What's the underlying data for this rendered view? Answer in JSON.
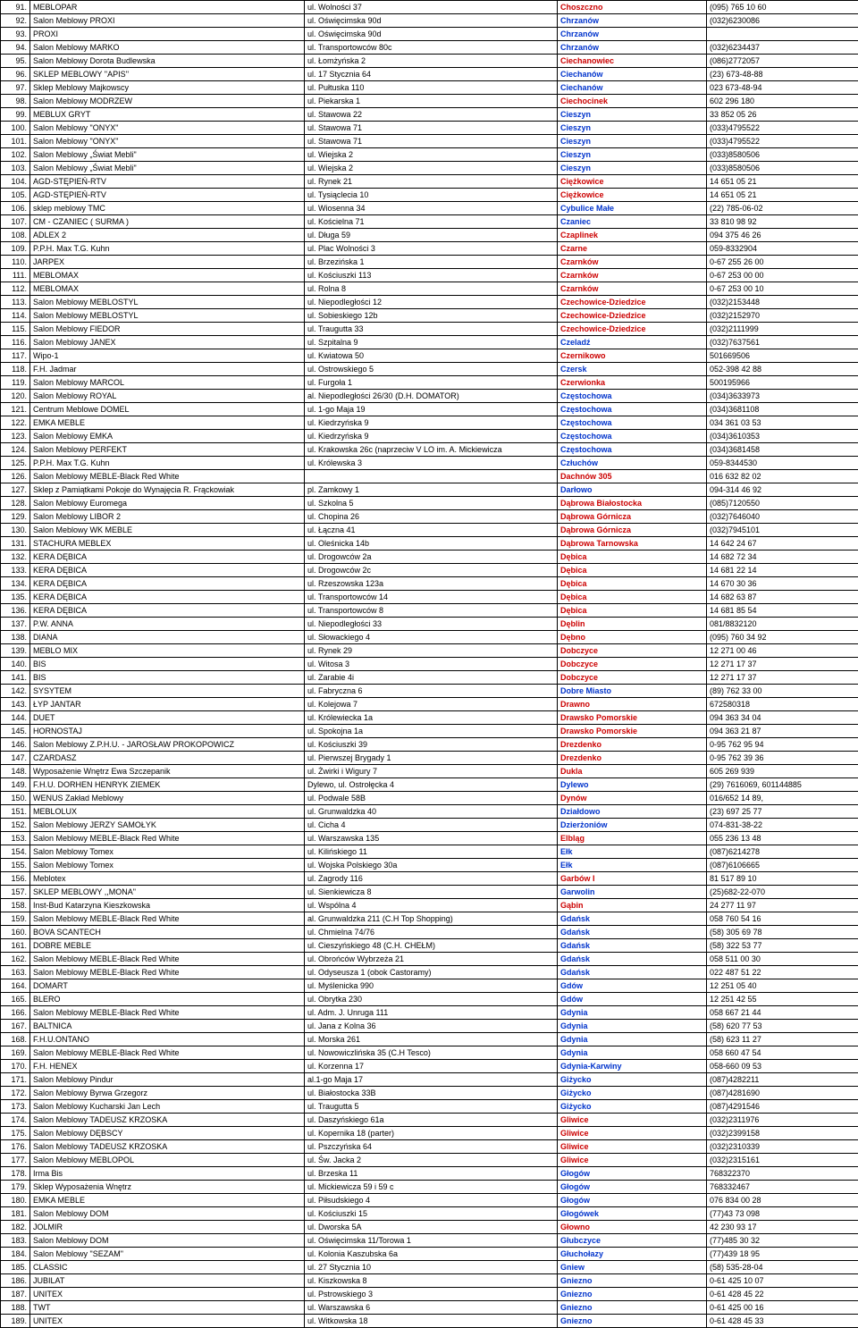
{
  "colors": {
    "cityDefault": "#cc0000",
    "cityBlue": "#0033cc",
    "text": "#000000",
    "border": "#000000",
    "background": "#ffffff"
  },
  "fontSize": 9,
  "rows": [
    {
      "n": "91.",
      "name": "MEBLOPAR",
      "addr": "ul. Wolności 37",
      "city": "Choszczno",
      "phone": "(095) 765 10 60",
      "cityColor": "#cc0000"
    },
    {
      "n": "92.",
      "name": "Salon Meblowy PROXI",
      "addr": "ul. Oświęcimska 90d",
      "city": "Chrzanów",
      "phone": "(032)6230086",
      "cityColor": "#0033cc"
    },
    {
      "n": "93.",
      "name": "PROXI",
      "addr": "ul. Oświęcimska 90d",
      "city": "Chrzanów",
      "phone": "",
      "cityColor": "#0033cc"
    },
    {
      "n": "94.",
      "name": "Salon Meblowy MARKO",
      "addr": "ul. Transportowców 80c",
      "city": "Chrzanów",
      "phone": "(032)6234437",
      "cityColor": "#0033cc"
    },
    {
      "n": "95.",
      "name": "Salon Meblowy Dorota Budlewska",
      "addr": "ul. Łomżyńska 2",
      "city": "Ciechanowiec",
      "phone": "(086)2772057",
      "cityColor": "#cc0000"
    },
    {
      "n": "96.",
      "name": "SKLEP MEBLOWY ''APIS''",
      "addr": "ul. 17 Stycznia 64",
      "city": "Ciechanów",
      "phone": "(23) 673-48-88",
      "cityColor": "#0033cc"
    },
    {
      "n": "97.",
      "name": "Sklep Meblowy  Majkowscy",
      "addr": "ul. Pułtuska 110",
      "city": "Ciechanów",
      "phone": "023 673-48-94",
      "cityColor": "#0033cc"
    },
    {
      "n": "98.",
      "name": "Salon Meblowy MODRZEW",
      "addr": "ul. Piekarska 1",
      "city": "Ciechocinek",
      "phone": "602 296 180",
      "cityColor": "#cc0000"
    },
    {
      "n": "99.",
      "name": "MEBLUX  GRYT",
      "addr": "ul. Stawowa 22",
      "city": "Cieszyn",
      "phone": "33 852 05 26",
      "cityColor": "#0033cc"
    },
    {
      "n": "100.",
      "name": "Salon Meblowy \"ONYX\"",
      "addr": "ul. Stawowa 71",
      "city": "Cieszyn",
      "phone": "(033)4795522",
      "cityColor": "#0033cc"
    },
    {
      "n": "101.",
      "name": "Salon Meblowy \"ONYX\"",
      "addr": "ul. Stawowa 71",
      "city": "Cieszyn",
      "phone": "(033)4795522",
      "cityColor": "#0033cc"
    },
    {
      "n": "102.",
      "name": "Salon Meblowy „Świat Mebli\"",
      "addr": "ul. Wiejska 2",
      "city": "Cieszyn",
      "phone": "(033)8580506",
      "cityColor": "#0033cc"
    },
    {
      "n": "103.",
      "name": "Salon Meblowy „Świat Mebli\"",
      "addr": "ul. Wiejska 2",
      "city": "Cieszyn",
      "phone": "(033)8580506",
      "cityColor": "#0033cc"
    },
    {
      "n": "104.",
      "name": "AGD-STĘPIEŃ-RTV",
      "addr": "ul. Rynek 21",
      "city": "Ciężkowice",
      "phone": "14 651 05 21",
      "cityColor": "#cc0000"
    },
    {
      "n": "105.",
      "name": "AGD-STĘPIEŃ-RTV",
      "addr": "ul. Tysiąclecia 10",
      "city": "Ciężkowice",
      "phone": "14 651 05 21",
      "cityColor": "#cc0000"
    },
    {
      "n": "106.",
      "name": "sklep meblowy TMC",
      "addr": "ul. Wiosenna 34",
      "city": "Cybulice Małe",
      "phone": "(22) 785-06-02",
      "cityColor": "#0033cc"
    },
    {
      "n": "107.",
      "name": "CM - CZANIEC ( SURMA )",
      "addr": "ul. Kościelna 71",
      "city": "Czaniec",
      "phone": "33 810 98 92",
      "cityColor": "#0033cc"
    },
    {
      "n": "108.",
      "name": "ADLEX 2",
      "addr": "ul. Długa 59",
      "city": "Czaplinek",
      "phone": "094 375 46 26",
      "cityColor": "#cc0000"
    },
    {
      "n": "109.",
      "name": "P.P.H. Max T.G. Kuhn",
      "addr": "ul. Plac Wolności 3",
      "city": "Czarne",
      "phone": "059-8332904",
      "cityColor": "#cc0000"
    },
    {
      "n": "110.",
      "name": "JARPEX",
      "addr": "ul. Brzezińska 1",
      "city": "Czarnków",
      "phone": "0-67 255 26 00",
      "cityColor": "#cc0000"
    },
    {
      "n": "111.",
      "name": "MEBLOMAX",
      "addr": "ul. Kościuszki 113",
      "city": "Czarnków",
      "phone": "0-67 253 00 00",
      "cityColor": "#cc0000"
    },
    {
      "n": "112.",
      "name": "MEBLOMAX",
      "addr": "ul. Rolna 8",
      "city": "Czarnków",
      "phone": "0-67 253 00 10",
      "cityColor": "#cc0000"
    },
    {
      "n": "113.",
      "name": "Salon Meblowy MEBLOSTYL",
      "addr": "ul. Niepodległości 12",
      "city": "Czechowice-Dziedzice",
      "phone": "(032)2153448",
      "cityColor": "#cc0000"
    },
    {
      "n": "114.",
      "name": "Salon Meblowy MEBLOSTYL",
      "addr": "ul. Sobieskiego 12b",
      "city": "Czechowice-Dziedzice",
      "phone": "(032)2152970",
      "cityColor": "#cc0000"
    },
    {
      "n": "115.",
      "name": "Salon Meblowy FIEDOR",
      "addr": "ul. Traugutta 33",
      "city": "Czechowice-Dziedzice",
      "phone": "(032)2111999",
      "cityColor": "#cc0000"
    },
    {
      "n": "116.",
      "name": "Salon Meblowy JANEX",
      "addr": "ul. Szpitalna 9",
      "city": "Czeladź",
      "phone": "(032)7637561",
      "cityColor": "#0033cc"
    },
    {
      "n": "117.",
      "name": "Wipo-1",
      "addr": "ul. Kwiatowa 50",
      "city": "Czernikowo",
      "phone": "501669506",
      "cityColor": "#cc0000"
    },
    {
      "n": "118.",
      "name": "F.H. Jadmar",
      "addr": "ul. Ostrowskiego 5",
      "city": "Czersk",
      "phone": "052-398 42 88",
      "cityColor": "#0033cc"
    },
    {
      "n": "119.",
      "name": "Salon Meblowy MARCOL",
      "addr": "ul. Furgoła 1",
      "city": "Czerwionka",
      "phone": "500195966",
      "cityColor": "#cc0000"
    },
    {
      "n": "120.",
      "name": "Salon Meblowy ROYAL",
      "addr": "al. Niepodległości 26/30 (D.H. DOMATOR)",
      "city": "Częstochowa",
      "phone": "(034)3633973",
      "cityColor": "#0033cc"
    },
    {
      "n": "121.",
      "name": "Centrum Meblowe DOMEL",
      "addr": "ul. 1-go Maja 19",
      "city": "Częstochowa",
      "phone": "(034)3681108",
      "cityColor": "#0033cc"
    },
    {
      "n": "122.",
      "name": "EMKA MEBLE",
      "addr": "ul. Kiedrzyńska 9",
      "city": "Częstochowa",
      "phone": "034 361 03 53",
      "cityColor": "#0033cc"
    },
    {
      "n": "123.",
      "name": "Salon Meblowy EMKA",
      "addr": "ul. Kiedrzyńska 9",
      "city": "Częstochowa",
      "phone": "(034)3610353",
      "cityColor": "#0033cc"
    },
    {
      "n": "124.",
      "name": "Salon Meblowy PERFEKT",
      "addr": "ul. Krakowska 26c (naprzeciw V LO im. A. Mickiewicza",
      "city": "Częstochowa",
      "phone": "(034)3681458",
      "cityColor": "#0033cc"
    },
    {
      "n": "125.",
      "name": "P.P.H. Max T.G. Kuhn",
      "addr": "ul. Królewska 3",
      "city": "Człuchów",
      "phone": "059-8344530",
      "cityColor": "#0033cc"
    },
    {
      "n": "126.",
      "name": "Salon Meblowy MEBLE-Black Red White",
      "addr": "",
      "city": "Dachnów 305",
      "phone": "016 632 82 02",
      "cityColor": "#cc0000"
    },
    {
      "n": "127.",
      "name": "Sklep z Pamiątkami Pokoje do Wynajęcia R. Frąckowiak",
      "addr": "pl. Zamkowy 1",
      "city": "Darłowo",
      "phone": "094-314 46 92",
      "cityColor": "#0033cc"
    },
    {
      "n": "128.",
      "name": "Salon Meblowy Euromega",
      "addr": "ul. Szkolna 5",
      "city": "Dąbrowa Białostocka",
      "phone": "(085)7120550",
      "cityColor": "#cc0000"
    },
    {
      "n": "129.",
      "name": "Salon Meblowy LIBOR 2",
      "addr": "ul. Chopina 26",
      "city": "Dąbrowa Górnicza",
      "phone": "(032)7646040",
      "cityColor": "#cc0000"
    },
    {
      "n": "130.",
      "name": "Salon Meblowy WK MEBLE",
      "addr": "ul. Łączna 41",
      "city": "Dąbrowa Górnicza",
      "phone": "(032)7945101",
      "cityColor": "#cc0000"
    },
    {
      "n": "131.",
      "name": "STACHURA  MEBLEX",
      "addr": "ul. Oleśnicka 14b",
      "city": "Dąbrowa Tarnowska",
      "phone": "14 642 24 67",
      "cityColor": "#cc0000"
    },
    {
      "n": "132.",
      "name": "KERA  DĘBICA",
      "addr": "ul. Drogowców 2a",
      "city": "Dębica",
      "phone": "14 682 72 34",
      "cityColor": "#cc0000"
    },
    {
      "n": "133.",
      "name": "KERA  DĘBICA",
      "addr": "ul. Drogowców 2c",
      "city": "Dębica",
      "phone": "14 681 22 14",
      "cityColor": "#cc0000"
    },
    {
      "n": "134.",
      "name": "KERA  DĘBICA",
      "addr": "ul. Rzeszowska 123a",
      "city": "Dębica",
      "phone": "14 670 30 36",
      "cityColor": "#cc0000"
    },
    {
      "n": "135.",
      "name": "KERA  DĘBICA",
      "addr": "ul. Transportowców 14",
      "city": "Dębica",
      "phone": "14 682 63 87",
      "cityColor": "#cc0000"
    },
    {
      "n": "136.",
      "name": "KERA  DĘBICA",
      "addr": "ul. Transportowców 8",
      "city": "Dębica",
      "phone": "14 681 85 54",
      "cityColor": "#cc0000"
    },
    {
      "n": "137.",
      "name": "P.W. ANNA",
      "addr": "ul. Niepodległości 33",
      "city": "Dęblin",
      "phone": "081/8832120",
      "cityColor": "#cc0000"
    },
    {
      "n": "138.",
      "name": "DIANA",
      "addr": "ul. Słowackiego 4",
      "city": "Dębno",
      "phone": "(095) 760 34 92",
      "cityColor": "#cc0000"
    },
    {
      "n": "139.",
      "name": "MEBLO MIX",
      "addr": "ul. Rynek 29",
      "city": "Dobczyce",
      "phone": "12 271 00 46",
      "cityColor": "#cc0000"
    },
    {
      "n": "140.",
      "name": "BIS",
      "addr": "ul. Witosa 3",
      "city": "Dobczyce",
      "phone": "12 271 17 37",
      "cityColor": "#cc0000"
    },
    {
      "n": "141.",
      "name": "BIS",
      "addr": "ul. Zarabie 4i",
      "city": "Dobczyce",
      "phone": "12 271 17 37",
      "cityColor": "#cc0000"
    },
    {
      "n": "142.",
      "name": "SYSYTEM",
      "addr": "ul. Fabryczna 6",
      "city": "Dobre Miasto",
      "phone": "(89) 762 33 00",
      "cityColor": "#0033cc"
    },
    {
      "n": "143.",
      "name": "ŁYP JANTAR",
      "addr": "ul. Kolejowa 7",
      "city": "Drawno",
      "phone": "672580318",
      "cityColor": "#cc0000"
    },
    {
      "n": "144.",
      "name": "DUET",
      "addr": "ul. Królewiecka 1a",
      "city": "Drawsko Pomorskie",
      "phone": "094 363 34 04",
      "cityColor": "#cc0000"
    },
    {
      "n": "145.",
      "name": "HORNOSTAJ",
      "addr": "ul. Spokojna 1a",
      "city": "Drawsko Pomorskie",
      "phone": "094 363 21 87",
      "cityColor": "#cc0000"
    },
    {
      "n": "146.",
      "name": "Salon Meblowy Z.P.H.U. - JAROSŁAW  PROKOPOWICZ",
      "addr": "ul. Kościuszki 39",
      "city": "Drezdenko",
      "phone": "0-95 762 95 94",
      "cityColor": "#cc0000"
    },
    {
      "n": "147.",
      "name": "CZARDASZ",
      "addr": "ul. Pierwszej Brygady 1",
      "city": "Drezdenko",
      "phone": "0-95 762 39 36",
      "cityColor": "#cc0000"
    },
    {
      "n": "148.",
      "name": "Wyposażenie Wnętrz Ewa Szczepanik",
      "addr": "ul. Żwirki i Wigury 7",
      "city": "Dukla",
      "phone": "605 269 939",
      "cityColor": "#cc0000"
    },
    {
      "n": "149.",
      "name": "F.H.U. DORHEN HENRYK ZIEMEK",
      "addr": "Dylewo, ul. Ostrołęcka 4",
      "city": "Dylewo",
      "phone": "(29) 7616069, 601144885",
      "cityColor": "#0033cc"
    },
    {
      "n": "150.",
      "name": "WENUS Zakład Meblowy",
      "addr": "ul. Podwale 58B",
      "city": "Dynów",
      "phone": "016/652 14 89,",
      "cityColor": "#cc0000"
    },
    {
      "n": "151.",
      "name": "MEBLOLUX",
      "addr": "ul. Grunwaldzka 40",
      "city": "Działdowo",
      "phone": "(23) 697 25 77",
      "cityColor": "#0033cc"
    },
    {
      "n": "152.",
      "name": "Salon Meblowy JERZY SAMOŁYK",
      "addr": "ul. Cicha 4",
      "city": "Dzierżoniów",
      "phone": "074-831-38-22",
      "cityColor": "#0033cc"
    },
    {
      "n": "153.",
      "name": "Salon Meblowy MEBLE-Black Red White",
      "addr": "ul. Warszawska 135",
      "city": "Elbląg",
      "phone": "055 236 13 48",
      "cityColor": "#cc0000"
    },
    {
      "n": "154.",
      "name": "Salon Meblowy Tomex",
      "addr": "ul. Kilińskiego 11",
      "city": "Ełk",
      "phone": "(087)6214278",
      "cityColor": "#0033cc"
    },
    {
      "n": "155.",
      "name": "Salon Meblowy Tomex",
      "addr": "ul. Wojska Polskiego 30a",
      "city": "Ełk",
      "phone": "(087)6106665",
      "cityColor": "#0033cc"
    },
    {
      "n": "156.",
      "name": "Meblotex",
      "addr": "ul. Zagrody 116",
      "city": "Garbów I",
      "phone": "81 517 89 10",
      "cityColor": "#cc0000"
    },
    {
      "n": "157.",
      "name": "SKLEP MEBLOWY ,,MONA\"",
      "addr": "ul. Sienkiewicza 8",
      "city": "Garwolin",
      "phone": "(25)682-22-070",
      "cityColor": "#0033cc"
    },
    {
      "n": "158.",
      "name": "Inst-Bud Katarzyna Kieszkowska",
      "addr": "ul. Wspólna 4",
      "city": "Gąbin",
      "phone": "24 277 11 97",
      "cityColor": "#cc0000"
    },
    {
      "n": "159.",
      "name": "Salon Meblowy MEBLE-Black Red White",
      "addr": "al. Grunwaldzka 211 (C.H Top Shopping)",
      "city": "Gdańsk",
      "phone": "058 760 54 16",
      "cityColor": "#0033cc"
    },
    {
      "n": "160.",
      "name": "BOVA SCANTECH",
      "addr": "ul. Chmielna 74/76",
      "city": "Gdańsk",
      "phone": "(58) 305 69 78",
      "cityColor": "#0033cc"
    },
    {
      "n": "161.",
      "name": "DOBRE MEBLE",
      "addr": "ul. Cieszyńskiego 48 (C.H. CHEŁM)",
      "city": "Gdańsk",
      "phone": "(58) 322 53 77",
      "cityColor": "#0033cc"
    },
    {
      "n": "162.",
      "name": "Salon Meblowy MEBLE-Black Red White",
      "addr": "ul. Obrońców Wybrzeża 21",
      "city": "Gdańsk",
      "phone": "058 511 00 30",
      "cityColor": "#0033cc"
    },
    {
      "n": "163.",
      "name": "Salon Meblowy MEBLE-Black Red White",
      "addr": "ul. Odyseusza 1 (obok Castoramy)",
      "city": "Gdańsk",
      "phone": "022 487 51 22",
      "cityColor": "#0033cc"
    },
    {
      "n": "164.",
      "name": "DOMART",
      "addr": "ul. Myślenicka 990",
      "city": "Gdów",
      "phone": "12 251 05 40",
      "cityColor": "#0033cc"
    },
    {
      "n": "165.",
      "name": "BLERO",
      "addr": "ul. Obrytka 230",
      "city": "Gdów",
      "phone": "12 251 42 55",
      "cityColor": "#0033cc"
    },
    {
      "n": "166.",
      "name": "Salon Meblowy MEBLE-Black Red White",
      "addr": "ul. Adm. J. Unruga 111",
      "city": "Gdynia",
      "phone": "058 667 21 44",
      "cityColor": "#0033cc"
    },
    {
      "n": "167.",
      "name": "BALTNICA",
      "addr": "ul. Jana z Kolna 36",
      "city": "Gdynia",
      "phone": "(58) 620 77 53",
      "cityColor": "#0033cc"
    },
    {
      "n": "168.",
      "name": "F.H.U.ONTANO",
      "addr": "ul. Morska 261",
      "city": "Gdynia",
      "phone": "(58) 623 11 27",
      "cityColor": "#0033cc"
    },
    {
      "n": "169.",
      "name": "Salon Meblowy MEBLE-Black Red White",
      "addr": "ul. Nowowiczlińska 35 (C.H Tesco)",
      "city": "Gdynia",
      "phone": "058 660 47 54",
      "cityColor": "#0033cc"
    },
    {
      "n": "170.",
      "name": "F.H. HENEX",
      "addr": "ul. Korzenna 17",
      "city": "Gdynia-Karwiny",
      "phone": "058-660 09 53",
      "cityColor": "#0033cc"
    },
    {
      "n": "171.",
      "name": "Salon Meblowy Pindur",
      "addr": "al.1-go Maja 17",
      "city": "Giżycko",
      "phone": "(087)4282211",
      "cityColor": "#0033cc"
    },
    {
      "n": "172.",
      "name": "Salon Meblowy Byrwa Grzegorz",
      "addr": "ul. Białostocka 33B",
      "city": "Giżycko",
      "phone": "(087)4281690",
      "cityColor": "#0033cc"
    },
    {
      "n": "173.",
      "name": "Salon Meblowy Kucharski Jan Lech",
      "addr": "ul. Traugutta 5",
      "city": "Giżycko",
      "phone": "(087)4291546",
      "cityColor": "#0033cc"
    },
    {
      "n": "174.",
      "name": "Salon Meblowy TADEUSZ KRZOSKA",
      "addr": "ul. Daszyńskiego 61a",
      "city": "Gliwice",
      "phone": "(032)2311976",
      "cityColor": "#cc0000"
    },
    {
      "n": "175.",
      "name": "Salon Meblowy DĘBSCY",
      "addr": "ul. Kopernika 18 (parter)",
      "city": "Gliwice",
      "phone": "(032)2399158",
      "cityColor": "#cc0000"
    },
    {
      "n": "176.",
      "name": "Salon Meblowy TADEUSZ KRZOSKA",
      "addr": "ul. Pszczyńska 64",
      "city": "Gliwice",
      "phone": "(032)2310339",
      "cityColor": "#cc0000"
    },
    {
      "n": "177.",
      "name": "Salon Meblowy MEBLOPOL",
      "addr": "ul. Św. Jacka 2",
      "city": "Gliwice",
      "phone": "(032)2315161",
      "cityColor": "#cc0000"
    },
    {
      "n": "178.",
      "name": "Irma Bis",
      "addr": "ul. Brzeska 11",
      "city": "Głogów",
      "phone": "768322370",
      "cityColor": "#0033cc"
    },
    {
      "n": "179.",
      "name": "Sklep Wyposażenia Wnętrz",
      "addr": "ul. Mickiewicza 59 i 59 c",
      "city": "Głogów",
      "phone": "768332467",
      "cityColor": "#0033cc"
    },
    {
      "n": "180.",
      "name": "EMKA MEBLE",
      "addr": "ul. Piłsudskiego 4",
      "city": "Głogów",
      "phone": "076 834 00 28",
      "cityColor": "#0033cc"
    },
    {
      "n": "181.",
      "name": "Salon Meblowy DOM",
      "addr": "ul. Kościuszki 15",
      "city": "Głogówek",
      "phone": "(77)43 73 098",
      "cityColor": "#0033cc"
    },
    {
      "n": "182.",
      "name": "JOLMIR",
      "addr": "ul. Dworska 5A",
      "city": "Głowno",
      "phone": "42 230 93 17",
      "cityColor": "#cc0000"
    },
    {
      "n": "183.",
      "name": "Salon Meblowy DOM",
      "addr": "ul. Oświęcimska 11/Torowa 1",
      "city": "Głubczyce",
      "phone": "(77)485 30 32",
      "cityColor": "#0033cc"
    },
    {
      "n": "184.",
      "name": "Salon Meblowy \"SEZAM\"",
      "addr": "ul. Kolonia Kaszubska 6a",
      "city": "Głuchołazy",
      "phone": "(77)439 18 95",
      "cityColor": "#0033cc"
    },
    {
      "n": "185.",
      "name": "CLASSIC",
      "addr": "ul. 27 Stycznia 10",
      "city": "Gniew",
      "phone": "(58) 535-28-04",
      "cityColor": "#0033cc"
    },
    {
      "n": "186.",
      "name": "JUBILAT",
      "addr": "ul. Kiszkowska 8",
      "city": "Gniezno",
      "phone": "0-61 425 10 07",
      "cityColor": "#0033cc"
    },
    {
      "n": "187.",
      "name": "UNITEX",
      "addr": "ul. Pstrowskiego 3",
      "city": "Gniezno",
      "phone": "0-61 428 45 22",
      "cityColor": "#0033cc"
    },
    {
      "n": "188.",
      "name": "TWT",
      "addr": "ul. Warszawska 6",
      "city": "Gniezno",
      "phone": "0-61 425 00 16",
      "cityColor": "#0033cc"
    },
    {
      "n": "189.",
      "name": "UNITEX",
      "addr": "ul. Witkowska 18",
      "city": "Gniezno",
      "phone": "0-61 428 45 33",
      "cityColor": "#0033cc"
    }
  ]
}
